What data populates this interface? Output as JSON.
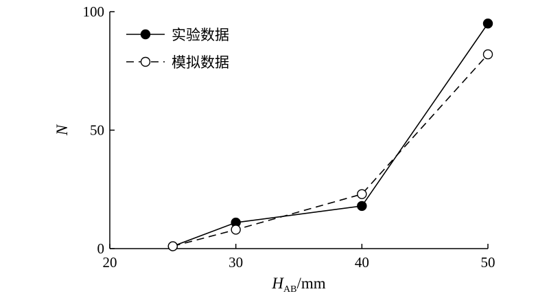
{
  "chart_data": {
    "type": "line",
    "title": "",
    "xlabel": {
      "main": "H",
      "subscript": "AB",
      "suffix": "/mm"
    },
    "ylabel": "N",
    "xlim": [
      20,
      50
    ],
    "ylim": [
      0,
      100
    ],
    "xticks": [
      20,
      30,
      40,
      50
    ],
    "yticks": [
      0,
      50,
      100
    ],
    "legend_position": "top-left",
    "grid": false,
    "series": [
      {
        "name": "实验数据",
        "style": "solid",
        "marker": "filled-circle",
        "x": [
          25,
          30,
          40,
          50
        ],
        "y": [
          1,
          11,
          18,
          95
        ]
      },
      {
        "name": "模拟数据",
        "style": "dashed",
        "marker": "open-circle",
        "x": [
          25,
          30,
          40,
          50
        ],
        "y": [
          1,
          8,
          23,
          82
        ]
      }
    ]
  }
}
